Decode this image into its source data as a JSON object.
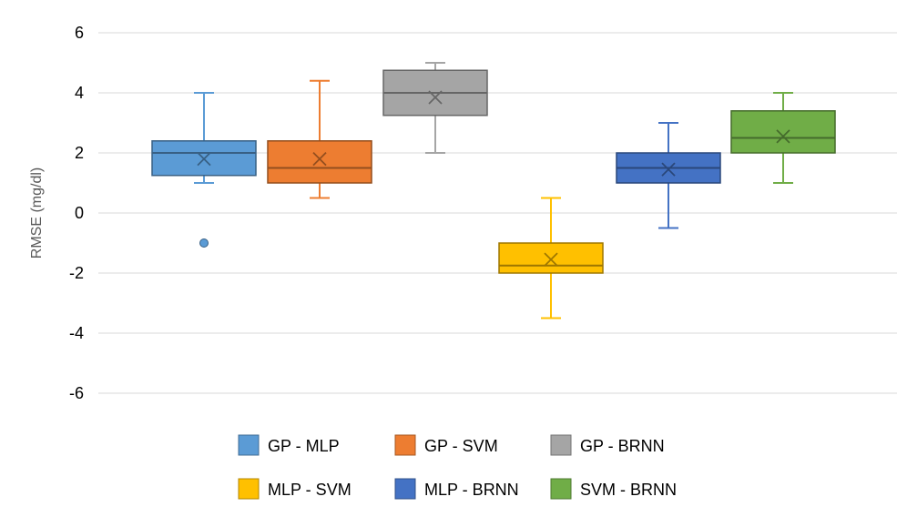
{
  "chart_data": {
    "type": "box",
    "title": "",
    "xlabel": "",
    "ylabel": "RMSE (mg/dl)",
    "ylim": [
      -6,
      6
    ],
    "yticks": [
      6,
      4,
      2,
      0,
      -2,
      -4,
      -6
    ],
    "grid": true,
    "legend_position": "bottom",
    "series": [
      {
        "name": "GP - MLP",
        "color": "#5b9bd5",
        "whisker_low": 1,
        "q1": 1.25,
        "median": 2,
        "q3": 2.4,
        "whisker_high": 4,
        "mean": 1.8,
        "outliers": [
          -1
        ]
      },
      {
        "name": "GP - SVM",
        "color": "#ed7d31",
        "whisker_low": 0.5,
        "q1": 1,
        "median": 1.5,
        "q3": 2.4,
        "whisker_high": 4.4,
        "mean": 1.8,
        "outliers": []
      },
      {
        "name": "GP - BRNN",
        "color": "#a5a5a5",
        "whisker_low": 2,
        "q1": 3.25,
        "median": 4,
        "q3": 4.75,
        "whisker_high": 5,
        "mean": 3.85,
        "outliers": []
      },
      {
        "name": "MLP - SVM",
        "color": "#ffc000",
        "whisker_low": -3.5,
        "q1": -2,
        "median": -1.75,
        "q3": -1,
        "whisker_high": 0.5,
        "mean": -1.55,
        "outliers": []
      },
      {
        "name": "MLP - BRNN",
        "color": "#4472c4",
        "whisker_low": -0.5,
        "q1": 1,
        "median": 1.5,
        "q3": 2,
        "whisker_high": 3,
        "mean": 1.45,
        "outliers": []
      },
      {
        "name": "SVM - BRNN",
        "color": "#70ad47",
        "whisker_low": 1,
        "q1": 2,
        "median": 2.5,
        "q3": 3.4,
        "whisker_high": 4,
        "mean": 2.55,
        "outliers": []
      }
    ]
  }
}
